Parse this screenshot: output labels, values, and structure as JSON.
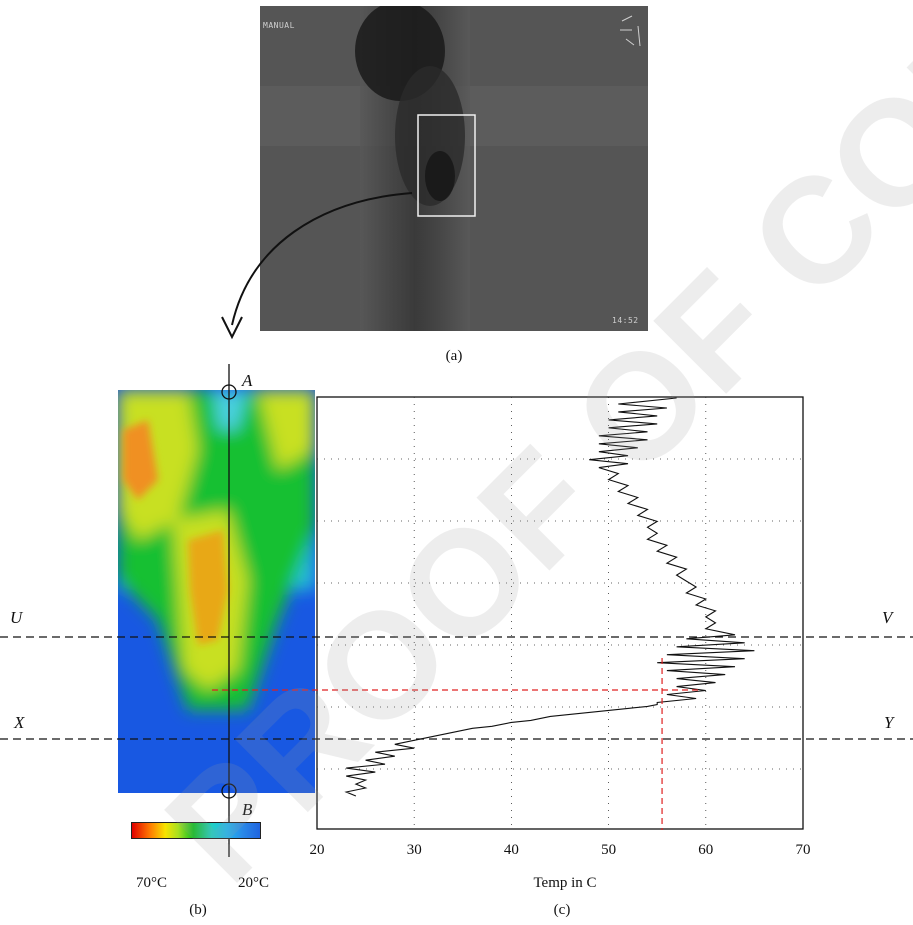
{
  "panel_a": {
    "caption": "(a)",
    "osd_mode": "MANUAL",
    "osd_time": "14:52"
  },
  "panel_b": {
    "caption": "(b)",
    "point_a": "A",
    "point_b": "B",
    "colorbar_left": "70°C",
    "colorbar_right": "20°C"
  },
  "panel_c": {
    "caption": "(c)"
  },
  "lines": {
    "u": "U",
    "v": "V",
    "x": "X",
    "y": "Y"
  },
  "chart_data": {
    "type": "line",
    "xlabel": "Temp in C",
    "xlim": [
      20,
      70
    ],
    "xticks": [
      "20",
      "30",
      "40",
      "50",
      "60",
      "70"
    ],
    "grid": true,
    "series": [
      {
        "orientation": "vertical-profile",
        "points": [
          [
            57,
            0
          ],
          [
            51,
            3
          ],
          [
            56,
            5
          ],
          [
            51,
            7
          ],
          [
            55,
            9
          ],
          [
            50,
            11
          ],
          [
            55,
            13
          ],
          [
            50,
            15
          ],
          [
            54,
            17
          ],
          [
            49,
            19
          ],
          [
            54,
            21
          ],
          [
            49,
            23
          ],
          [
            53,
            25
          ],
          [
            49,
            27
          ],
          [
            52,
            29
          ],
          [
            48,
            31
          ],
          [
            52,
            33
          ],
          [
            49,
            35
          ],
          [
            51,
            38
          ],
          [
            50,
            41
          ],
          [
            52,
            44
          ],
          [
            51,
            47
          ],
          [
            53,
            50
          ],
          [
            52,
            53
          ],
          [
            54,
            56
          ],
          [
            53,
            59
          ],
          [
            55,
            62
          ],
          [
            54,
            65
          ],
          [
            55,
            68
          ],
          [
            54,
            71
          ],
          [
            56,
            74
          ],
          [
            55,
            77
          ],
          [
            57,
            80
          ],
          [
            56,
            83
          ],
          [
            58,
            86
          ],
          [
            57,
            89
          ],
          [
            58,
            92
          ],
          [
            59,
            95
          ],
          [
            58,
            98
          ],
          [
            60,
            101
          ],
          [
            59,
            104
          ],
          [
            61,
            107
          ],
          [
            60,
            110
          ],
          [
            61,
            113
          ],
          [
            60,
            116
          ],
          [
            63,
            119
          ],
          [
            58,
            121
          ],
          [
            64,
            123
          ],
          [
            57,
            125
          ],
          [
            65,
            127
          ],
          [
            56,
            129
          ],
          [
            64,
            131
          ],
          [
            55,
            133
          ],
          [
            63,
            135
          ],
          [
            56,
            137
          ],
          [
            62,
            139
          ],
          [
            57,
            141
          ],
          [
            61,
            143
          ],
          [
            57,
            145
          ],
          [
            60,
            147
          ],
          [
            56,
            149
          ],
          [
            59,
            151
          ],
          [
            55,
            153
          ],
          [
            55,
            154
          ],
          [
            54,
            155
          ],
          [
            52,
            156
          ],
          [
            50,
            157
          ],
          [
            48,
            158
          ],
          [
            46,
            159
          ],
          [
            44,
            160
          ],
          [
            42,
            162
          ],
          [
            40,
            163
          ],
          [
            38,
            165
          ],
          [
            36,
            166
          ],
          [
            34,
            168
          ],
          [
            32,
            170
          ],
          [
            30,
            172
          ],
          [
            28,
            174
          ],
          [
            30,
            176
          ],
          [
            26,
            178
          ],
          [
            28,
            180
          ],
          [
            25,
            182
          ],
          [
            27,
            184
          ],
          [
            23,
            186
          ],
          [
            26,
            188
          ],
          [
            23,
            190
          ],
          [
            25,
            192
          ],
          [
            24,
            194
          ],
          [
            25,
            196
          ],
          [
            23,
            198
          ],
          [
            24,
            200
          ]
        ],
        "y_axis": "position along A–B"
      }
    ],
    "markers": {
      "red_dashed_temperature": 55.5
    }
  },
  "watermark": "PROOF OF CONCEPT"
}
